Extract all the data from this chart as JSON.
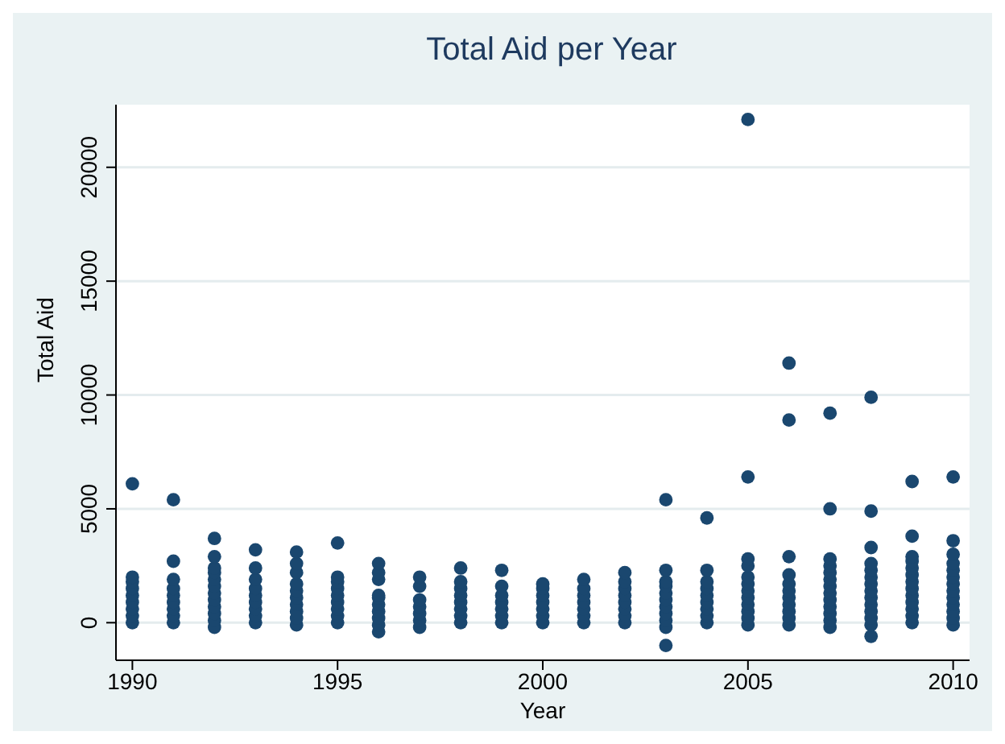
{
  "chart_data": {
    "type": "scatter",
    "title": "Total Aid per Year",
    "xlabel": "Year",
    "ylabel": "Total Aid",
    "xlim": [
      1989.6,
      2010.4
    ],
    "xticks": [
      1990,
      1995,
      2000,
      2005,
      2010
    ],
    "ylim": [
      -1650,
      22750
    ],
    "yticks": [
      0,
      5000,
      10000,
      15000,
      20000
    ],
    "grid": "y",
    "marker": "circle",
    "series": [
      {
        "color": "#1a476f",
        "x": [
          1990,
          1990,
          1990,
          1990,
          1990,
          1990,
          1990,
          1990,
          1990,
          1991,
          1991,
          1991,
          1991,
          1991,
          1991,
          1991,
          1991,
          1991,
          1992,
          1992,
          1992,
          1992,
          1992,
          1992,
          1992,
          1992,
          1992,
          1992,
          1992,
          1992,
          1993,
          1993,
          1993,
          1993,
          1993,
          1993,
          1993,
          1993,
          1993,
          1994,
          1994,
          1994,
          1994,
          1994,
          1994,
          1994,
          1994,
          1994,
          1994,
          1995,
          1995,
          1995,
          1995,
          1995,
          1995,
          1995,
          1995,
          1995,
          1996,
          1996,
          1996,
          1996,
          1996,
          1996,
          1996,
          1996,
          1996,
          1996,
          1997,
          1997,
          1997,
          1997,
          1997,
          1997,
          1997,
          1998,
          1998,
          1998,
          1998,
          1998,
          1998,
          1998,
          1998,
          1999,
          1999,
          1999,
          1999,
          1999,
          1999,
          1999,
          2000,
          2000,
          2000,
          2000,
          2000,
          2000,
          2000,
          2001,
          2001,
          2001,
          2001,
          2001,
          2001,
          2001,
          2002,
          2002,
          2002,
          2002,
          2002,
          2002,
          2002,
          2002,
          2003,
          2003,
          2003,
          2003,
          2003,
          2003,
          2003,
          2003,
          2003,
          2003,
          2003,
          2004,
          2004,
          2004,
          2004,
          2004,
          2004,
          2004,
          2004,
          2004,
          2005,
          2005,
          2005,
          2005,
          2005,
          2005,
          2005,
          2005,
          2005,
          2005,
          2005,
          2005,
          2006,
          2006,
          2006,
          2006,
          2006,
          2006,
          2006,
          2006,
          2006,
          2006,
          2006,
          2007,
          2007,
          2007,
          2007,
          2007,
          2007,
          2007,
          2007,
          2007,
          2007,
          2007,
          2007,
          2007,
          2008,
          2008,
          2008,
          2008,
          2008,
          2008,
          2008,
          2008,
          2008,
          2008,
          2008,
          2008,
          2008,
          2008,
          2009,
          2009,
          2009,
          2009,
          2009,
          2009,
          2009,
          2009,
          2009,
          2009,
          2009,
          2009,
          2009,
          2010,
          2010,
          2010,
          2010,
          2010,
          2010,
          2010,
          2010,
          2010,
          2010,
          2010,
          2010,
          2010
        ],
        "values": [
          0,
          300,
          600,
          900,
          1200,
          1500,
          1800,
          2000,
          6100,
          0,
          300,
          600,
          900,
          1200,
          1500,
          1900,
          2700,
          5400,
          -200,
          100,
          400,
          700,
          1000,
          1300,
          1600,
          1900,
          2200,
          2400,
          2900,
          3700,
          0,
          300,
          600,
          900,
          1200,
          1500,
          1900,
          2400,
          3200,
          -100,
          200,
          500,
          800,
          1100,
          1400,
          1700,
          2200,
          2600,
          3100,
          0,
          300,
          600,
          900,
          1200,
          1500,
          1800,
          2000,
          3500,
          -400,
          -100,
          200,
          500,
          800,
          1100,
          1200,
          1900,
          2200,
          2600,
          -200,
          100,
          400,
          700,
          1000,
          1600,
          2000,
          0,
          300,
          600,
          900,
          1200,
          1500,
          1800,
          2400,
          0,
          300,
          600,
          900,
          1200,
          1600,
          2300,
          0,
          300,
          600,
          900,
          1200,
          1500,
          1700,
          0,
          300,
          600,
          900,
          1200,
          1500,
          1900,
          0,
          300,
          600,
          900,
          1200,
          1500,
          1800,
          2200,
          -1000,
          -200,
          100,
          400,
          700,
          1000,
          1300,
          1600,
          1800,
          2300,
          5400,
          0,
          300,
          600,
          900,
          1200,
          1500,
          1800,
          2300,
          4600,
          -100,
          200,
          500,
          800,
          1100,
          1400,
          1700,
          2000,
          2500,
          2800,
          6400,
          22100,
          -100,
          200,
          500,
          800,
          1100,
          1400,
          1700,
          2100,
          2900,
          8900,
          11400,
          -200,
          100,
          400,
          700,
          1000,
          1300,
          1600,
          1900,
          2200,
          2500,
          2800,
          5000,
          9200,
          -600,
          -100,
          200,
          500,
          800,
          1100,
          1400,
          1700,
          2000,
          2300,
          2600,
          3300,
          4900,
          9900,
          0,
          300,
          600,
          900,
          1200,
          1500,
          1800,
          2100,
          2400,
          2700,
          2900,
          3800,
          6200,
          -100,
          200,
          500,
          800,
          1100,
          1400,
          1700,
          2000,
          2300,
          2600,
          3000,
          3600,
          6400
        ]
      }
    ]
  }
}
